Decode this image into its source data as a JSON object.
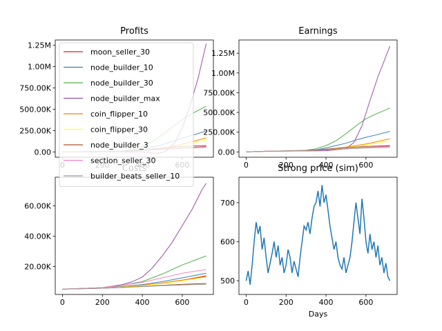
{
  "chart_data": [
    {
      "type": "line",
      "title": "Profits",
      "xlabel": "",
      "ylabel": "",
      "xlim": [
        -36,
        756
      ],
      "ylim": [
        -62500,
        1312500
      ],
      "xticks": [
        0,
        200,
        400,
        600
      ],
      "yticks": [
        0,
        250000,
        500000,
        750000,
        1000000,
        1250000
      ],
      "ytick_labels": [
        "0.00",
        "250.00K",
        "500.00K",
        "750.00K",
        "1.00M",
        "1.25M"
      ],
      "legend": "upper-left",
      "series": [
        {
          "name": "moon_seller_30",
          "color": "#e41a1c",
          "x": [
            0,
            300,
            400,
            500,
            600,
            720
          ],
          "values": [
            0,
            5000,
            15000,
            30000,
            45000,
            65000
          ]
        },
        {
          "name": "node_builder_10",
          "color": "#377eb8",
          "x": [
            0,
            300,
            350,
            400,
            450,
            500,
            550,
            600,
            650,
            720
          ],
          "values": [
            0,
            8000,
            15000,
            30000,
            55000,
            85000,
            120000,
            160000,
            195000,
            245000
          ]
        },
        {
          "name": "node_builder_30",
          "color": "#4daf4a",
          "x": [
            0,
            300,
            350,
            400,
            450,
            500,
            550,
            600,
            650,
            720
          ],
          "values": [
            0,
            10000,
            25000,
            60000,
            120000,
            200000,
            290000,
            380000,
            450000,
            535000
          ]
        },
        {
          "name": "node_builder_max",
          "color": "#984ea3",
          "x": [
            0,
            400,
            480,
            520,
            560,
            600,
            640,
            680,
            720
          ],
          "values": [
            0,
            0,
            -20000,
            10000,
            100000,
            280000,
            550000,
            870000,
            1270000
          ]
        },
        {
          "name": "coin_flipper_10",
          "color": "#ff7f00",
          "x": [
            0,
            300,
            400,
            500,
            600,
            720
          ],
          "values": [
            0,
            5000,
            15000,
            40000,
            90000,
            165000
          ]
        },
        {
          "name": "coin_flipper_30",
          "color": "#ffff33",
          "x": [
            0,
            300,
            400,
            500,
            600,
            720
          ],
          "values": [
            0,
            5000,
            12000,
            35000,
            80000,
            140000
          ]
        },
        {
          "name": "node_builder_3",
          "color": "#a65628",
          "x": [
            0,
            300,
            400,
            500,
            600,
            720
          ],
          "values": [
            0,
            5000,
            20000,
            45000,
            65000,
            75000
          ]
        },
        {
          "name": "section_seller_30",
          "color": "#f781bf",
          "x": [
            0,
            300,
            400,
            500,
            600,
            720
          ],
          "values": [
            0,
            5000,
            18000,
            35000,
            50000,
            62000
          ]
        },
        {
          "name": "builder_beats_seller_10",
          "color": "#999999",
          "x": [
            0,
            300,
            400,
            500,
            600,
            720
          ],
          "values": [
            0,
            4000,
            15000,
            28000,
            42000,
            55000
          ]
        }
      ]
    },
    {
      "type": "line",
      "title": "Earnings",
      "xlabel": "",
      "ylabel": "",
      "xlim": [
        -36,
        756
      ],
      "ylim": [
        -67500,
        1417500
      ],
      "xticks": [
        0,
        200,
        400,
        600
      ],
      "yticks": [
        0,
        250000,
        500000,
        750000,
        1000000,
        1250000
      ],
      "ytick_labels": [
        "0.00",
        "250.00K",
        "500.00K",
        "750.00K",
        "1.00M",
        "1.25M"
      ],
      "series": [
        {
          "name": "moon_seller_30",
          "color": "#e41a1c",
          "x": [
            0,
            100,
            300,
            400,
            500,
            600,
            720
          ],
          "values": [
            0,
            8000,
            15000,
            25000,
            40000,
            55000,
            75000
          ]
        },
        {
          "name": "node_builder_10",
          "color": "#377eb8",
          "x": [
            0,
            100,
            300,
            350,
            400,
            450,
            500,
            550,
            600,
            650,
            720
          ],
          "values": [
            0,
            8000,
            15000,
            25000,
            50000,
            80000,
            110000,
            150000,
            185000,
            215000,
            260000
          ]
        },
        {
          "name": "node_builder_30",
          "color": "#4daf4a",
          "x": [
            0,
            100,
            300,
            350,
            400,
            450,
            500,
            550,
            600,
            650,
            720
          ],
          "values": [
            0,
            8000,
            20000,
            40000,
            80000,
            140000,
            230000,
            330000,
            420000,
            480000,
            555000
          ]
        },
        {
          "name": "node_builder_max",
          "color": "#984ea3",
          "x": [
            0,
            100,
            400,
            500,
            540,
            580,
            620,
            660,
            720
          ],
          "values": [
            0,
            8000,
            15000,
            40000,
            120000,
            330000,
            650000,
            950000,
            1340000
          ]
        },
        {
          "name": "coin_flipper_10",
          "color": "#ff7f00",
          "x": [
            0,
            100,
            300,
            400,
            500,
            600,
            720
          ],
          "values": [
            0,
            8000,
            15000,
            30000,
            60000,
            100000,
            165000
          ]
        },
        {
          "name": "coin_flipper_30",
          "color": "#ffff33",
          "x": [
            0,
            100,
            300,
            400,
            500,
            600,
            720
          ],
          "values": [
            0,
            8000,
            15000,
            28000,
            55000,
            90000,
            140000
          ]
        },
        {
          "name": "node_builder_3",
          "color": "#a65628",
          "x": [
            0,
            100,
            300,
            400,
            500,
            600,
            720
          ],
          "values": [
            0,
            8000,
            18000,
            35000,
            55000,
            70000,
            80000
          ]
        },
        {
          "name": "section_seller_30",
          "color": "#f781bf",
          "x": [
            0,
            100,
            300,
            400,
            500,
            600,
            720
          ],
          "values": [
            0,
            8000,
            15000,
            28000,
            42000,
            58000,
            70000
          ]
        },
        {
          "name": "builder_beats_seller_10",
          "color": "#999999",
          "x": [
            0,
            100,
            300,
            400,
            500,
            600,
            720
          ],
          "values": [
            0,
            8000,
            14000,
            25000,
            38000,
            50000,
            60000
          ]
        }
      ]
    },
    {
      "type": "line",
      "title": "Costs",
      "xlabel": "",
      "ylabel": "",
      "xlim": [
        -36,
        756
      ],
      "ylim": [
        1500,
        79000
      ],
      "xticks": [
        0,
        200,
        400,
        600
      ],
      "yticks": [
        20000,
        40000,
        60000
      ],
      "ytick_labels": [
        "20.00K",
        "40.00K",
        "60.00K"
      ],
      "series": [
        {
          "name": "moon_seller_30",
          "color": "#e41a1c",
          "x": [
            0,
            200,
            300,
            400,
            500,
            600,
            720
          ],
          "values": [
            5000,
            5700,
            6500,
            7500,
            9000,
            11000,
            13500
          ]
        },
        {
          "name": "node_builder_10",
          "color": "#377eb8",
          "x": [
            0,
            200,
            300,
            400,
            500,
            600,
            720
          ],
          "values": [
            5000,
            5800,
            6800,
            8000,
            10000,
            12500,
            15500
          ]
        },
        {
          "name": "node_builder_30",
          "color": "#4daf4a",
          "x": [
            0,
            200,
            300,
            400,
            500,
            600,
            720
          ],
          "values": [
            5000,
            6000,
            7500,
            10000,
            15000,
            21000,
            27000
          ]
        },
        {
          "name": "node_builder_max",
          "color": "#984ea3",
          "x": [
            0,
            200,
            300,
            350,
            400,
            450,
            500,
            550,
            600,
            650,
            700,
            720
          ],
          "values": [
            5000,
            6000,
            8000,
            10000,
            13000,
            19000,
            27000,
            36000,
            47000,
            58000,
            71000,
            75000
          ]
        },
        {
          "name": "coin_flipper_10",
          "color": "#ff7f00",
          "x": [
            0,
            200,
            300,
            400,
            500,
            600,
            720
          ],
          "values": [
            5000,
            5800,
            6500,
            7600,
            9000,
            11000,
            14000
          ]
        },
        {
          "name": "coin_flipper_30",
          "color": "#ffff33",
          "x": [
            0,
            200,
            300,
            400,
            500,
            600,
            720
          ],
          "values": [
            5000,
            5700,
            6400,
            7300,
            8600,
            10500,
            13000
          ]
        },
        {
          "name": "node_builder_3",
          "color": "#a65628",
          "x": [
            0,
            200,
            300,
            400,
            500,
            600,
            720
          ],
          "values": [
            5000,
            5600,
            6200,
            6900,
            7500,
            8200,
            8800
          ]
        },
        {
          "name": "section_seller_30",
          "color": "#f781bf",
          "x": [
            0,
            200,
            300,
            400,
            500,
            600,
            720
          ],
          "values": [
            5000,
            6000,
            7500,
            9500,
            12500,
            15500,
            18000
          ]
        },
        {
          "name": "builder_beats_seller_10",
          "color": "#999999",
          "x": [
            0,
            200,
            300,
            400,
            500,
            600,
            720
          ],
          "values": [
            5000,
            5600,
            6100,
            6700,
            7300,
            7800,
            8200
          ]
        }
      ]
    },
    {
      "type": "line",
      "title": "Strong price (sim)",
      "xlabel": "Days",
      "ylabel": "",
      "xlim": [
        -36,
        756
      ],
      "ylim": [
        465,
        765
      ],
      "xticks": [
        0,
        200,
        400,
        600
      ],
      "yticks": [
        500,
        600,
        700
      ],
      "ytick_labels": [
        "500",
        "600",
        "700"
      ],
      "series": [
        {
          "name": "",
          "color": "#1f77b4",
          "x": [
            0,
            10,
            20,
            30,
            40,
            50,
            60,
            70,
            80,
            90,
            100,
            110,
            120,
            130,
            140,
            150,
            160,
            170,
            180,
            190,
            200,
            210,
            220,
            230,
            240,
            250,
            260,
            270,
            280,
            290,
            300,
            310,
            320,
            330,
            340,
            350,
            360,
            370,
            380,
            390,
            400,
            410,
            420,
            430,
            440,
            450,
            460,
            470,
            480,
            490,
            500,
            510,
            520,
            530,
            540,
            550,
            560,
            570,
            580,
            590,
            600,
            610,
            620,
            630,
            640,
            650,
            660,
            670,
            680,
            690,
            700,
            710,
            720
          ],
          "values": [
            500,
            525,
            490,
            540,
            600,
            650,
            620,
            640,
            580,
            610,
            560,
            520,
            545,
            570,
            600,
            560,
            590,
            540,
            560,
            520,
            540,
            580,
            560,
            520,
            550,
            530,
            510,
            560,
            600,
            640,
            630,
            650,
            620,
            660,
            690,
            700,
            730,
            690,
            745,
            700,
            720,
            680,
            640,
            610,
            580,
            600,
            560,
            540,
            530,
            560,
            520,
            540,
            560,
            600,
            650,
            700,
            660,
            620,
            710,
            660,
            600,
            570,
            620,
            580,
            600,
            560,
            590,
            540,
            560,
            520,
            545,
            510,
            500
          ]
        }
      ]
    }
  ]
}
